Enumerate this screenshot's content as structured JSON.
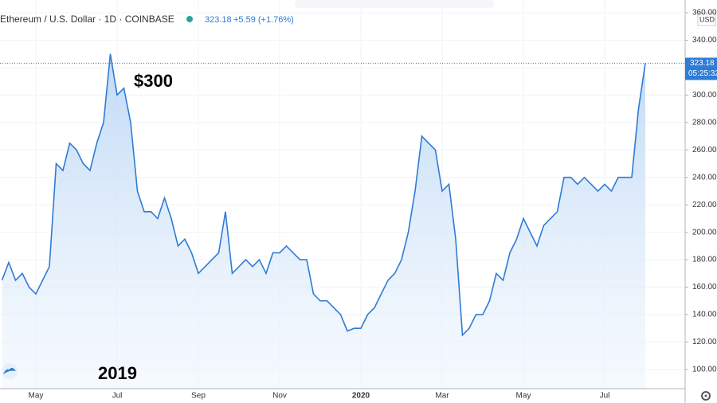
{
  "chart_data": {
    "type": "line",
    "title": "Ethereum / U.S. Dollar · 1D · COINBASE",
    "last_value": 323.18,
    "change_text": "+5.59 (+1.76%)",
    "axis_unit": "USD",
    "price_label": "323.18",
    "time_label": "05:25:32",
    "annotations": [
      "$300",
      "2019"
    ],
    "categories": [
      null,
      null,
      null,
      null,
      null,
      "May",
      null,
      null,
      null,
      null,
      null,
      null,
      null,
      null,
      null,
      null,
      null,
      "Jul",
      null,
      null,
      null,
      null,
      null,
      null,
      null,
      null,
      null,
      null,
      null,
      "Sep",
      null,
      null,
      null,
      null,
      null,
      null,
      null,
      null,
      null,
      null,
      null,
      "Nov",
      null,
      null,
      null,
      null,
      null,
      null,
      null,
      null,
      null,
      null,
      null,
      "2020",
      null,
      null,
      null,
      null,
      null,
      null,
      null,
      null,
      null,
      null,
      null,
      "Mar",
      null,
      null,
      null,
      null,
      null,
      null,
      null,
      null,
      null,
      null,
      null,
      "May",
      null,
      null,
      null,
      null,
      null,
      null,
      null,
      null,
      null,
      null,
      null,
      "Jul",
      null,
      null,
      null,
      null,
      null,
      null
    ],
    "series": [
      {
        "name": "ETHUSD",
        "color": "#2f7bd6",
        "values": [
          165,
          178,
          165,
          170,
          160,
          155,
          165,
          175,
          250,
          245,
          265,
          260,
          250,
          245,
          265,
          280,
          330,
          300,
          305,
          280,
          230,
          215,
          215,
          210,
          225,
          210,
          190,
          195,
          185,
          170,
          175,
          180,
          185,
          215,
          170,
          175,
          180,
          175,
          180,
          170,
          185,
          185,
          190,
          185,
          180,
          180,
          155,
          150,
          150,
          145,
          140,
          128,
          130,
          130,
          140,
          145,
          155,
          165,
          170,
          180,
          200,
          230,
          270,
          265,
          260,
          230,
          235,
          195,
          125,
          130,
          140,
          140,
          150,
          170,
          165,
          185,
          195,
          210,
          200,
          190,
          205,
          210,
          215,
          240,
          240,
          235,
          240,
          235,
          230,
          235,
          230,
          240,
          240,
          240,
          290,
          323.18
        ]
      }
    ],
    "ylim": [
      86,
      360
    ],
    "yticks": [
      100,
      120,
      140,
      160,
      180,
      200,
      220,
      240,
      260,
      280,
      300,
      320,
      340,
      360
    ],
    "ytick_labels": [
      "100.00",
      "120.00",
      "140.00",
      "160.00",
      "180.00",
      "200.00",
      "220.00",
      "240.00",
      "260.00",
      "280.00",
      "300.00",
      "320.00",
      "340.00",
      "360.00"
    ],
    "grid": true
  }
}
